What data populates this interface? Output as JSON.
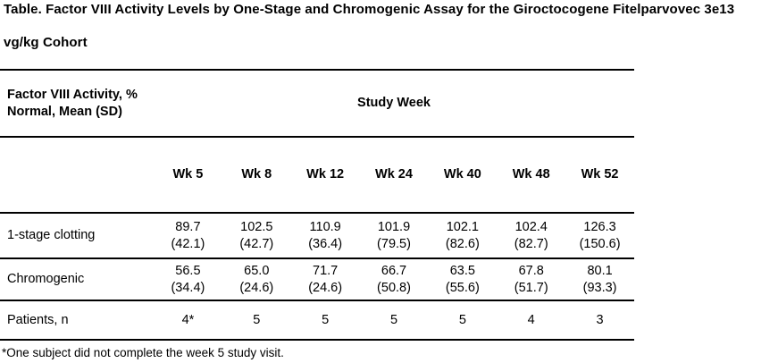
{
  "title": {
    "line1": "Table. Factor VIII Activity Levels by One-Stage and Chromogenic Assay for the Giroctocogene Fitelparvovec 3e13",
    "line2": "vg/kg Cohort"
  },
  "table": {
    "header_label_line1": "Factor VIII Activity, %",
    "header_label_line2": "Normal, Mean (SD)",
    "study_week_label": "Study Week",
    "week_headers": [
      "Wk 5",
      "Wk 8",
      "Wk 12",
      "Wk 24",
      "Wk 40",
      "Wk 48",
      "Wk 52"
    ],
    "rows": [
      {
        "label": "1-stage clotting",
        "means": [
          "89.7",
          "102.5",
          "110.9",
          "101.9",
          "102.1",
          "102.4",
          "126.3"
        ],
        "sds": [
          "(42.1)",
          "(42.7)",
          "(36.4)",
          "(79.5)",
          "(82.6)",
          "(82.7)",
          "(150.6)"
        ]
      },
      {
        "label": "Chromogenic",
        "means": [
          "56.5",
          "65.0",
          "71.7",
          "66.7",
          "63.5",
          "67.8",
          "80.1"
        ],
        "sds": [
          "(34.4)",
          "(24.6)",
          "(24.6)",
          "(50.8)",
          "(55.6)",
          "(51.7)",
          "(93.3)"
        ]
      }
    ],
    "patients_row": {
      "label": "Patients, n",
      "values": [
        "4*",
        "5",
        "5",
        "5",
        "5",
        "4",
        "3"
      ]
    }
  },
  "footnote": "*One subject did not complete the week 5 study visit.",
  "colors": {
    "text": "#000000",
    "rule": "#000000",
    "background": "#ffffff"
  }
}
